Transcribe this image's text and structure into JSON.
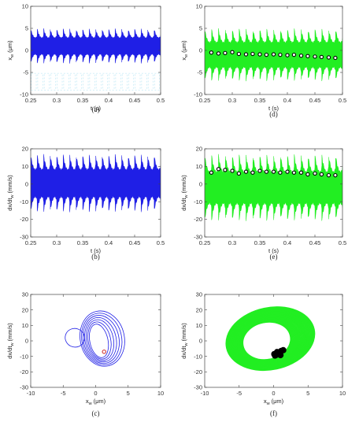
{
  "colors": {
    "blue": "#1f1fe6",
    "green": "#22ee22",
    "red": "#cc2222",
    "marker": "#000000",
    "axis": "#444444"
  },
  "chart_data": [
    {
      "panel": "(a)",
      "type": "line",
      "series_color": "#1f1fe6",
      "xlabel": "t (s)",
      "ylabel": "x",
      "ylabel_sub": "w",
      "ylabel_unit": "(μm)",
      "xlim": [
        0.25,
        0.5
      ],
      "ylim": [
        -10,
        10
      ],
      "xticks": [
        "0.25",
        "0.3",
        "0.35",
        "0.4",
        "0.45",
        "0.5"
      ],
      "yticks": [
        "-10",
        "-5",
        "0",
        "5",
        "10"
      ],
      "signal": {
        "cycles": 20,
        "max": 5,
        "min": -3,
        "hollow_band": [
          -10,
          -4.5
        ]
      },
      "markers": {
        "color": "red",
        "x": [],
        "y": []
      }
    },
    {
      "panel": "(b)",
      "type": "line",
      "series_color": "#1f1fe6",
      "xlabel": "t (s)",
      "ylabel": "dx/dt",
      "ylabel_sub": "w",
      "ylabel_unit": "(mm/s)",
      "xlim": [
        0.25,
        0.5
      ],
      "ylim": [
        -30,
        20
      ],
      "xticks": [
        "0.25",
        "0.3",
        "0.35",
        "0.4",
        "0.45",
        "0.5"
      ],
      "yticks": [
        "-30",
        "-20",
        "-10",
        "0",
        "10",
        "20"
      ],
      "signal": {
        "cycles": 20,
        "max": 17,
        "min": -16
      },
      "markers": {
        "color": "red",
        "x": [],
        "y": []
      }
    },
    {
      "panel": "(c)",
      "type": "line",
      "series_color": "#1f1fe6",
      "xlabel": "x",
      "xlabel_sub": "w",
      "xlabel_unit": "(μm)",
      "ylabel": "dx/dt",
      "ylabel_sub": "w",
      "ylabel_unit": "(mm/s)",
      "xlim": [
        -10,
        10
      ],
      "ylim": [
        -30,
        30
      ],
      "xticks": [
        "-10",
        "-5",
        "0",
        "5",
        "10"
      ],
      "yticks": [
        "-30",
        "-20",
        "-10",
        "0",
        "10",
        "20",
        "30"
      ],
      "phase": {
        "center": [
          0.5,
          0
        ],
        "rx": [
          1.4,
          3.4
        ],
        "ry": [
          11,
          18
        ],
        "rings": 7,
        "small_loop": {
          "cx": -3.2,
          "cy": 2,
          "rx": 1.5,
          "ry": 6
        }
      },
      "markers": {
        "color": "red",
        "x": [
          1.3
        ],
        "y": [
          -7
        ]
      }
    },
    {
      "panel": "(d)",
      "type": "line",
      "series_color": "#22ee22",
      "xlabel": "t (s)",
      "ylabel": "x",
      "ylabel_sub": "w",
      "ylabel_unit": "(μm)",
      "xlim": [
        0.25,
        0.5
      ],
      "ylim": [
        -10,
        10
      ],
      "xticks": [
        "0.25",
        "0.3",
        "0.35",
        "0.4",
        "0.45",
        "0.5"
      ],
      "yticks": [
        "-10",
        "-5",
        "0",
        "5",
        "10"
      ],
      "signal": {
        "cycles": 20,
        "max": 5,
        "min": -7
      },
      "markers": {
        "color": "black",
        "x": [
          0.262,
          0.275,
          0.287,
          0.3,
          0.312,
          0.325,
          0.337,
          0.35,
          0.362,
          0.375,
          0.387,
          0.4,
          0.412,
          0.425,
          0.437,
          0.45,
          0.462,
          0.475,
          0.487
        ],
        "y": [
          -0.5,
          -0.7,
          -0.6,
          -0.4,
          -0.8,
          -0.9,
          -0.8,
          -0.9,
          -1.0,
          -0.9,
          -1.0,
          -1.1,
          -1.0,
          -1.2,
          -1.3,
          -1.4,
          -1.5,
          -1.6,
          -1.7
        ]
      }
    },
    {
      "panel": "(e)",
      "type": "line",
      "series_color": "#22ee22",
      "xlabel": "t (s)",
      "ylabel": "dx/dt",
      "ylabel_sub": "w",
      "ylabel_unit": "(mm/s)",
      "xlim": [
        0.25,
        0.5
      ],
      "ylim": [
        -30,
        20
      ],
      "xticks": [
        "0.25",
        "0.3",
        "0.35",
        "0.4",
        "0.45",
        "0.5"
      ],
      "yticks": [
        "-30",
        "-20",
        "-10",
        "0",
        "10",
        "20"
      ],
      "signal": {
        "cycles": 20,
        "max": 17,
        "min": -21
      },
      "markers": {
        "color": "black",
        "x": [
          0.262,
          0.275,
          0.287,
          0.3,
          0.312,
          0.325,
          0.337,
          0.35,
          0.362,
          0.375,
          0.387,
          0.4,
          0.412,
          0.425,
          0.437,
          0.45,
          0.462,
          0.475,
          0.487
        ],
        "y": [
          6.5,
          8.5,
          8.0,
          7.5,
          6.0,
          7.0,
          6.5,
          7.5,
          7.0,
          7.0,
          6.5,
          7.0,
          6.5,
          6.5,
          5.5,
          6.0,
          5.5,
          5.0,
          5.0
        ]
      }
    },
    {
      "panel": "(f)",
      "type": "line",
      "series_color": "#22ee22",
      "xlabel": "x",
      "xlabel_sub": "w",
      "xlabel_unit": "(μm)",
      "ylabel": "dx/dt",
      "ylabel_sub": "w",
      "ylabel_unit": "(mm/s)",
      "xlim": [
        -10,
        10
      ],
      "ylim": [
        -30,
        30
      ],
      "xticks": [
        "-10",
        "-5",
        "0",
        "5",
        "10"
      ],
      "yticks": [
        "-30",
        "-20",
        "-10",
        "0",
        "10",
        "20",
        "30"
      ],
      "phase": {
        "center": [
          -1,
          0
        ],
        "rx": [
          3.5,
          6.5
        ],
        "ry": [
          12,
          20
        ],
        "rings": 30,
        "small_loop": {
          "cx": 3.5,
          "cy": -3,
          "rx": 1.2,
          "ry": 9
        }
      },
      "markers": {
        "color": "black",
        "x": [
          0.1,
          0.4,
          0.8,
          1.1,
          0.6,
          0.2,
          0.9,
          1.4,
          0.5,
          1.0
        ],
        "y": [
          -8.5,
          -9.0,
          -7.5,
          -6.5,
          -8.0,
          -9.5,
          -8.8,
          -6.0,
          -7.2,
          -9.2
        ]
      }
    }
  ]
}
